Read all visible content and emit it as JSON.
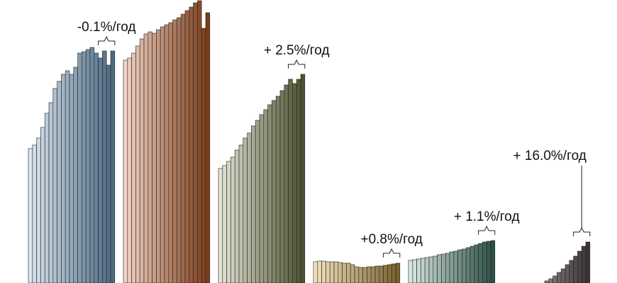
{
  "chart_data": {
    "type": "bar",
    "ylim": [
      0,
      400
    ],
    "series": [
      {
        "color": [
          "#d9e5ef",
          "#4d6a82"
        ],
        "annotation": "-0.1%/год",
        "values": [
          190,
          195,
          205,
          220,
          240,
          255,
          275,
          285,
          295,
          300,
          295,
          305,
          325,
          327,
          330,
          333,
          325,
          318,
          328,
          308,
          328
        ]
      },
      {
        "color": [
          "#f2d3c4",
          "#7a3c1a"
        ],
        "annotation": null,
        "values": [
          315,
          318,
          325,
          335,
          345,
          352,
          355,
          353,
          358,
          362,
          365,
          368,
          372,
          375,
          380,
          385,
          390,
          396,
          399,
          360,
          382
        ]
      },
      {
        "color": [
          "#e2e5d4",
          "#4c5331"
        ],
        "annotation": "+ 2.5%/год",
        "values": [
          162,
          166,
          172,
          178,
          188,
          195,
          205,
          212,
          222,
          230,
          238,
          245,
          252,
          258,
          264,
          272,
          280,
          288,
          282,
          288,
          295
        ]
      },
      {
        "color": [
          "#f1e2bc",
          "#7a612d"
        ],
        "annotation": "+0.8%/год",
        "values": [
          30,
          31,
          31,
          30,
          30,
          30,
          29,
          28,
          28,
          26,
          23,
          22,
          22,
          23,
          23,
          24,
          24,
          25,
          26,
          27,
          28
        ]
      },
      {
        "color": [
          "#d8e8e2",
          "#2d5046"
        ],
        "annotation": "+ 1.1%/год",
        "values": [
          32,
          33,
          34,
          35,
          36,
          37,
          38,
          40,
          41,
          42,
          44,
          45,
          47,
          48,
          50,
          52,
          54,
          56,
          58,
          59,
          60
        ]
      },
      {
        "color": [
          "#cfc7c7",
          "#3c3434"
        ],
        "annotation": "+ 16.0%/год",
        "values": [
          0,
          0,
          0,
          0,
          0,
          0,
          0,
          0,
          0,
          0,
          3,
          6,
          10,
          15,
          20,
          26,
          32,
          38,
          45,
          52,
          58
        ]
      }
    ]
  }
}
